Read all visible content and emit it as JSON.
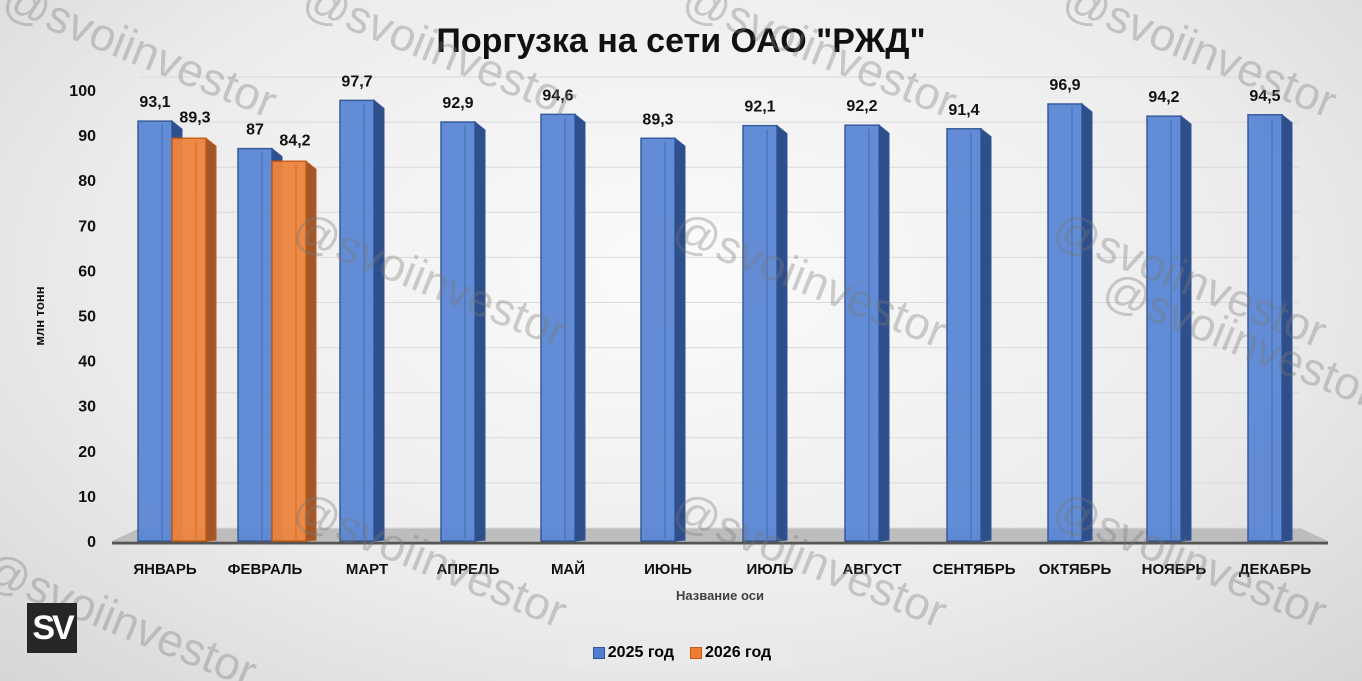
{
  "chart_data": {
    "type": "bar",
    "title": "Поргузка на сети ОАО \"РЖД\"",
    "xlabel": "Название оси",
    "ylabel": "млн тонн",
    "ylim": [
      0,
      100
    ],
    "yticks": [
      "0",
      "10",
      "20",
      "30",
      "40",
      "50",
      "60",
      "70",
      "80",
      "90",
      "100"
    ],
    "grid": true,
    "legend_position": "bottom",
    "categories": [
      "ЯНВАРЬ",
      "ФЕВРАЛЬ",
      "МАРТ",
      "АПРЕЛЬ",
      "МАЙ",
      "ИЮНЬ",
      "ИЮЛЬ",
      "АВГУСТ",
      "СЕНТЯБРЬ",
      "ОКТЯБРЬ",
      "НОЯБРЬ",
      "ДЕКАБРЬ"
    ],
    "series": [
      {
        "name": "2025 год",
        "color": "#4f7ed0",
        "values": [
          93.1,
          87,
          97.7,
          92.9,
          94.6,
          89.3,
          92.1,
          92.2,
          91.4,
          96.9,
          94.2,
          94.5
        ],
        "labels": [
          "93,1",
          "87",
          "97,7",
          "92,9",
          "94,6",
          "89,3",
          "92,1",
          "92,2",
          "91,4",
          "96,9",
          "94,2",
          "94,5"
        ]
      },
      {
        "name": "2026 год",
        "color": "#ed7d31",
        "values": [
          89.3,
          84.2,
          null,
          null,
          null,
          null,
          null,
          null,
          null,
          null,
          null,
          null
        ],
        "labels": [
          "89,3",
          "84,2"
        ]
      }
    ]
  },
  "watermark": "@svoiinvestor",
  "logo": "SV"
}
